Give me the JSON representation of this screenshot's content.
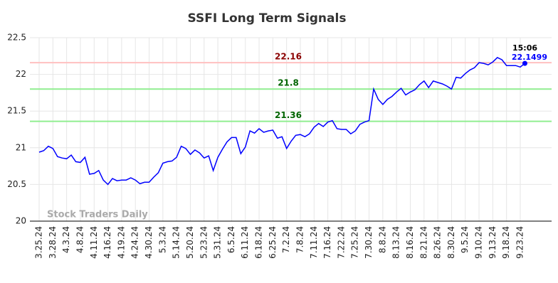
{
  "chart_data": {
    "type": "line",
    "title": "SSFI Long Term Signals",
    "watermark": "Stock Traders Daily",
    "time_label": "15:06",
    "categories": [
      "3.25.24",
      null,
      null,
      "3.28.24",
      null,
      null,
      "4.3.24",
      null,
      null,
      "4.8.24",
      null,
      null,
      "4.11.24",
      null,
      null,
      "4.16.24",
      null,
      null,
      "4.19.24",
      null,
      null,
      "4.24.24",
      null,
      null,
      "4.30.24",
      null,
      null,
      "5.3.24",
      null,
      null,
      "5.14.24",
      null,
      null,
      "5.20.24",
      null,
      null,
      "5.23.24",
      null,
      null,
      "5.31.24",
      null,
      null,
      "6.5.24",
      null,
      null,
      "6.11.24",
      null,
      null,
      "6.18.24",
      null,
      null,
      "6.25.24",
      null,
      null,
      "7.2.24",
      null,
      null,
      "7.8.24",
      null,
      null,
      "7.11.24",
      null,
      null,
      "7.16.24",
      null,
      null,
      "7.22.24",
      null,
      null,
      "7.25.24",
      null,
      null,
      "7.30.24",
      null,
      null,
      "8.8.24",
      null,
      null,
      "8.13.24",
      null,
      null,
      "8.16.24",
      null,
      null,
      "8.21.24",
      null,
      null,
      "8.26.24",
      null,
      null,
      "8.30.24",
      null,
      null,
      "9.5.24",
      null,
      null,
      "9.10.24",
      null,
      null,
      "9.13.24",
      null,
      null,
      "9.18.24",
      null,
      null,
      "9.23.24",
      null
    ],
    "values": [
      20.94,
      20.96,
      21.02,
      20.99,
      20.88,
      20.86,
      20.85,
      20.9,
      20.81,
      20.8,
      20.87,
      20.64,
      20.65,
      20.69,
      20.56,
      20.5,
      20.58,
      20.55,
      20.56,
      20.56,
      20.59,
      20.56,
      20.51,
      20.53,
      20.53,
      20.6,
      20.66,
      20.79,
      20.81,
      20.82,
      20.87,
      21.02,
      20.99,
      20.91,
      20.97,
      20.93,
      20.86,
      20.89,
      20.69,
      20.87,
      20.98,
      21.08,
      21.14,
      21.14,
      20.92,
      21.01,
      21.23,
      21.2,
      21.26,
      21.21,
      21.23,
      21.24,
      21.13,
      21.15,
      20.99,
      21.09,
      21.17,
      21.18,
      21.15,
      21.19,
      21.28,
      21.33,
      21.29,
      21.35,
      21.37,
      21.26,
      21.25,
      21.25,
      21.19,
      21.23,
      21.32,
      21.35,
      21.37,
      21.8,
      21.66,
      21.59,
      21.66,
      21.7,
      21.76,
      21.81,
      21.72,
      21.76,
      21.79,
      21.86,
      21.91,
      21.82,
      21.91,
      21.89,
      21.87,
      21.84,
      21.8,
      21.96,
      21.95,
      22.01,
      22.06,
      22.09,
      22.16,
      22.15,
      22.13,
      22.17,
      22.23,
      22.2,
      22.12,
      22.12,
      22.12,
      22.1,
      22.1499
    ],
    "color": "#0000ff",
    "reference_lines": [
      {
        "value": 22.16,
        "color": "#ffc0c0",
        "label_color": "#8b0000"
      },
      {
        "value": 21.8,
        "color": "#90ee90",
        "label_color": "#006400"
      },
      {
        "value": 21.36,
        "color": "#90ee90",
        "label_color": "#006400"
      }
    ],
    "ylim": [
      20,
      22.5
    ],
    "yticks": [
      20,
      20.5,
      21,
      21.5,
      22,
      22.5
    ],
    "grid": true
  }
}
